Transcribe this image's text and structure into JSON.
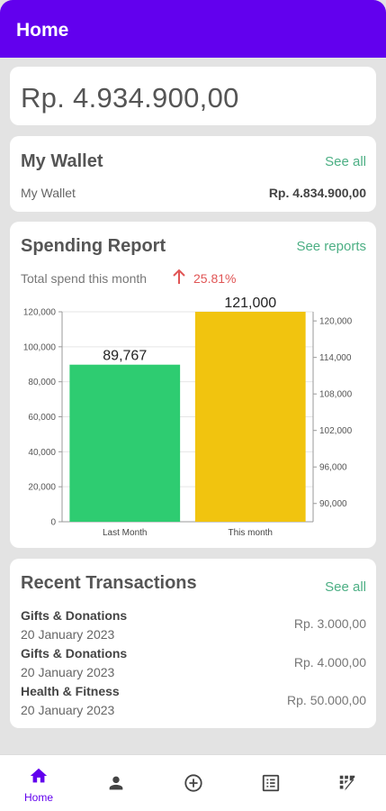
{
  "appbar": {
    "title": "Home"
  },
  "balance": {
    "amount": "Rp. 4.934.900,00"
  },
  "wallet": {
    "title": "My Wallet",
    "see_all": "See all",
    "items": [
      {
        "name": "My Wallet",
        "amount": "Rp. 4.834.900,00"
      }
    ]
  },
  "report": {
    "title": "Spending Report",
    "see_reports": "See reports",
    "trend_label": "Total spend this month",
    "trend_icon": "arrow-up-icon",
    "trend_pct": "25.81%",
    "trend_color": "#e05555"
  },
  "chart_data": {
    "type": "bar",
    "categories": [
      "Last Month",
      "This month"
    ],
    "values": [
      89767,
      121000
    ],
    "value_labels": [
      "89,767",
      "121,000"
    ],
    "colors": [
      "#2ecc71",
      "#f1c40f"
    ],
    "left_axis": {
      "ticks": [
        "0",
        "20,000",
        "40,000",
        "60,000",
        "80,000",
        "100,000",
        "120,000"
      ],
      "range": [
        0,
        120000
      ]
    },
    "right_axis": {
      "ticks": [
        "90,000",
        "96,000",
        "102,000",
        "108,000",
        "114,000",
        "120,000"
      ],
      "range": [
        87000,
        121500
      ]
    },
    "grid": true,
    "legend": "none"
  },
  "transactions": {
    "title": "Recent Transactions",
    "see_all": "See all",
    "items": [
      {
        "category": "Gifts & Donations",
        "date": "20 January 2023",
        "amount": "Rp. 3.000,00"
      },
      {
        "category": "Gifts & Donations",
        "date": "20 January 2023",
        "amount": "Rp. 4.000,00"
      },
      {
        "category": "Health & Fitness",
        "date": "20 January 2023",
        "amount": "Rp. 50.000,00"
      }
    ]
  },
  "nav": {
    "active_color": "#6200ee",
    "items": [
      {
        "icon": "home-icon",
        "label": "Home"
      },
      {
        "icon": "person-icon"
      },
      {
        "icon": "add-circle-icon"
      },
      {
        "icon": "list-icon"
      },
      {
        "icon": "dashboard-icon"
      }
    ]
  }
}
